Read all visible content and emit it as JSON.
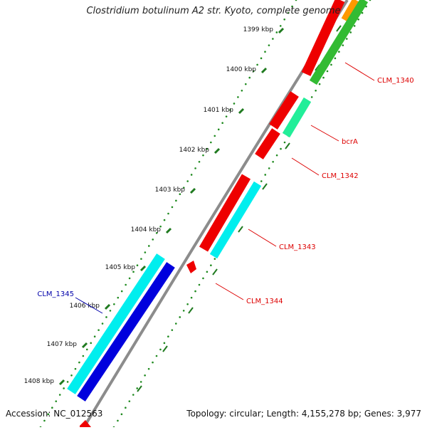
{
  "title": "Clostridium botulinum A2 str. Kyoto, complete genome",
  "footer": {
    "accession_label": "Accession:",
    "accession_value": "NC_012563",
    "topology_label": "Topology:",
    "topology_value": "circular",
    "length_label": "Length:",
    "length_value": "4,155,278 bp",
    "genes_label": "Genes:",
    "genes_value": "3,977"
  },
  "ticks": [
    "1399 kbp",
    "1400 kbp",
    "1401 kbp",
    "1402 kbp",
    "1403 kbp",
    "1404 kbp",
    "1405 kbp",
    "1406 kbp",
    "1407 kbp",
    "1408 kbp"
  ],
  "colors": {
    "backbone": "#8c8c8c",
    "tick_mark": "#1f7a1f",
    "dot": "#1f8a1f",
    "red": "#ee0000",
    "green": "#33bb33",
    "orange": "#ff9900",
    "spring": "#22ee99",
    "cyan": "#00eeee",
    "blue": "#0000dd",
    "label_red": "#dd0000",
    "label_blue": "#0000aa"
  },
  "genes": [
    {
      "name": "CLM_1340",
      "color": "red"
    },
    {
      "name": "bcrA",
      "color": "red"
    },
    {
      "name": "CLM_1342",
      "color": "red"
    },
    {
      "name": "CLM_1343",
      "color": "red"
    },
    {
      "name": "CLM_1344",
      "color": "red"
    },
    {
      "name": "CLM_1345",
      "color": "blue"
    }
  ]
}
